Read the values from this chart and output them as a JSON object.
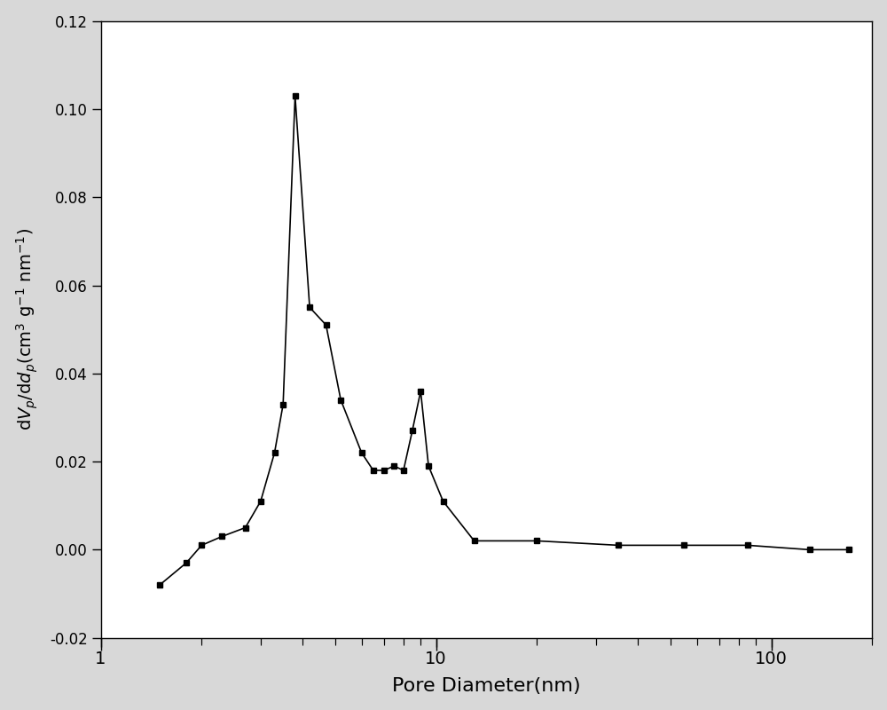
{
  "x": [
    1.5,
    1.8,
    2.0,
    2.3,
    2.7,
    3.0,
    3.3,
    3.5,
    3.8,
    4.2,
    4.7,
    5.2,
    6.0,
    6.5,
    7.0,
    7.5,
    8.0,
    8.5,
    9.0,
    9.5,
    10.5,
    13.0,
    20.0,
    35.0,
    55.0,
    85.0,
    130.0,
    170.0
  ],
  "y": [
    -0.008,
    -0.003,
    0.001,
    0.003,
    0.005,
    0.011,
    0.022,
    0.033,
    0.103,
    0.055,
    0.051,
    0.034,
    0.022,
    0.018,
    0.018,
    0.019,
    0.018,
    0.027,
    0.036,
    0.019,
    0.011,
    0.002,
    0.002,
    0.001,
    0.001,
    0.001,
    0.0,
    0.0
  ],
  "xlabel": "Pore Diameter(nm)",
  "ylabel": "d$V_p$/d$d_p$(cm$^3$ g$^{-1}$ nm$^{-1}$)",
  "xlim": [
    1,
    200
  ],
  "ylim": [
    -0.02,
    0.12
  ],
  "yticks": [
    -0.02,
    0.0,
    0.02,
    0.04,
    0.06,
    0.08,
    0.1,
    0.12
  ],
  "xticks_major": [
    1,
    10,
    100
  ],
  "line_color": "#000000",
  "marker": "s",
  "markersize": 5,
  "linewidth": 1.2,
  "plot_bg": "#ffffff",
  "figure_bg": "#d8d8d8"
}
